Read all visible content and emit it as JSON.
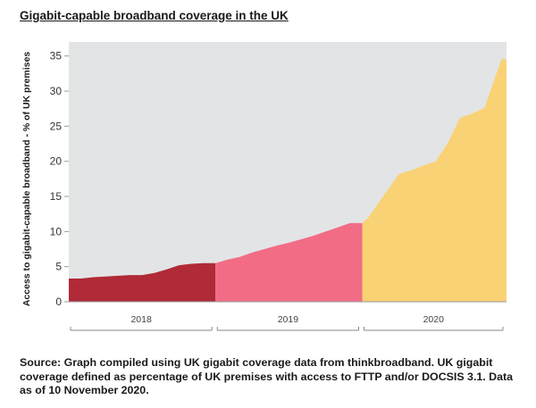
{
  "chart_data": {
    "type": "area",
    "title": "Gigabit-capable broadband coverage in the UK",
    "xlabel": "",
    "ylabel": "Access to gigabit-capable broadband - % of UK premises",
    "ylim": [
      0,
      37
    ],
    "yticks": [
      0,
      5,
      10,
      15,
      20,
      25,
      30,
      35
    ],
    "x_unit": "months since start of 2018",
    "grid": false,
    "colors": {
      "plot_bg": "#e3e4e6",
      "2018": "#b02a37",
      "2019": "#f26c86",
      "2020": "#f9d275",
      "axis": "#999999"
    },
    "series": [
      {
        "name": "2018",
        "x": [
          0,
          1,
          2,
          3,
          4,
          5,
          6,
          7,
          8,
          9,
          10,
          11,
          12
        ],
        "y": [
          3.3,
          3.3,
          3.5,
          3.6,
          3.7,
          3.8,
          3.8,
          4.1,
          4.6,
          5.2,
          5.4,
          5.5,
          5.5
        ]
      },
      {
        "name": "2019",
        "x": [
          12,
          13,
          14,
          15,
          16,
          17,
          18,
          19,
          20,
          21,
          22,
          23,
          24
        ],
        "y": [
          5.5,
          6.0,
          6.4,
          7.0,
          7.5,
          8.0,
          8.4,
          8.9,
          9.4,
          10.0,
          10.6,
          11.2,
          11.2
        ]
      },
      {
        "name": "2020",
        "x": [
          24,
          24.5,
          25.5,
          27,
          28,
          29,
          30,
          31,
          32,
          33,
          34,
          35.4,
          35.8
        ],
        "y": [
          11.2,
          12.0,
          14.5,
          18.2,
          18.7,
          19.4,
          20.0,
          22.6,
          26.2,
          26.8,
          27.6,
          34.6,
          34.5
        ]
      }
    ],
    "year_labels": [
      "2018",
      "2019",
      "2020"
    ]
  },
  "source_note": "Source: Graph compiled using UK gigabit coverage data from thinkbroadband. UK gigabit coverage defined as percentage of UK premises with access to FTTP and/or DOCSIS 3.1. Data as of 10 November 2020."
}
